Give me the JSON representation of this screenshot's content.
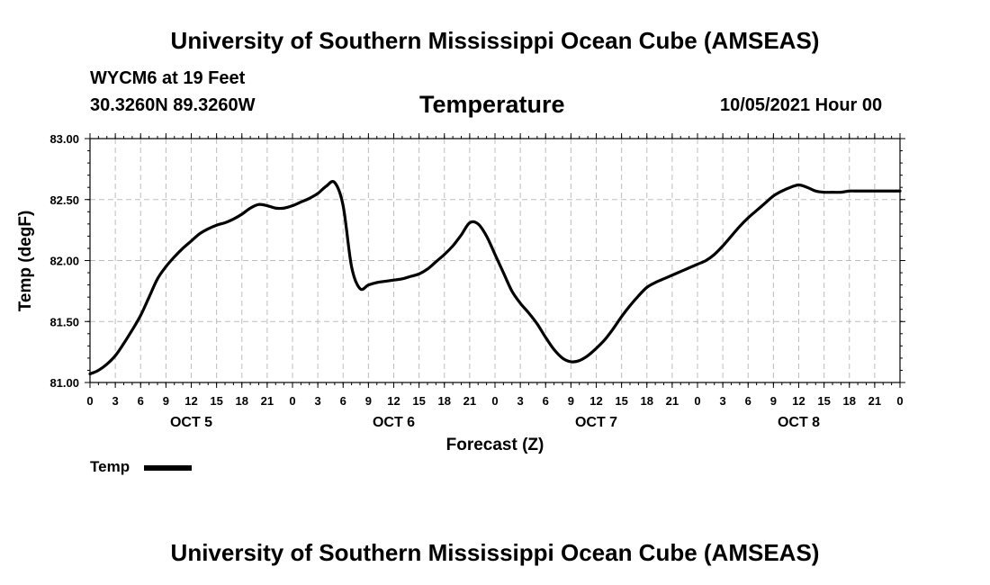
{
  "header": {
    "title": "University of Southern Mississippi Ocean Cube (AMSEAS)",
    "station": "WYCM6 at 19 Feet",
    "coordinates": "30.3260N  89.3260W",
    "variable": "Temperature",
    "run_time": "10/05/2021 Hour 00"
  },
  "footer": {
    "title": "University of Southern Mississippi Ocean Cube (AMSEAS)"
  },
  "legend": {
    "label": "Temp",
    "color": "#000000"
  },
  "chart_data": {
    "type": "line",
    "title": "Temperature",
    "xlabel": "Forecast (Z)",
    "ylabel": "Temp (degF)",
    "ylim": [
      81.0,
      83.0
    ],
    "xlim": [
      0,
      96
    ],
    "grid": true,
    "y_ticks": [
      "81.00",
      "81.50",
      "82.00",
      "82.50",
      "83.00"
    ],
    "x_tick_labels": [
      "0",
      "3",
      "6",
      "9",
      "12",
      "15",
      "18",
      "21",
      "0",
      "3",
      "6",
      "9",
      "12",
      "15",
      "18",
      "21",
      "0",
      "3",
      "6",
      "9",
      "12",
      "15",
      "18",
      "21",
      "0",
      "3",
      "6",
      "9",
      "12",
      "15",
      "18",
      "21",
      "0"
    ],
    "day_labels": [
      {
        "label": "OCT 5",
        "hour": 12
      },
      {
        "label": "OCT 6",
        "hour": 36
      },
      {
        "label": "OCT 7",
        "hour": 60
      },
      {
        "label": "OCT 8",
        "hour": 84
      }
    ],
    "series": [
      {
        "name": "Temp",
        "color": "#000000",
        "x": [
          0,
          1,
          2,
          3,
          4,
          5,
          6,
          7,
          8,
          9,
          10,
          11,
          12,
          13,
          14,
          15,
          16,
          17,
          18,
          19,
          20,
          21,
          22,
          23,
          24,
          25,
          26,
          27,
          28,
          29,
          30,
          31,
          32,
          33,
          34,
          35,
          36,
          37,
          38,
          39,
          40,
          41,
          42,
          43,
          44,
          45,
          46,
          47,
          48,
          49,
          50,
          51,
          52,
          53,
          54,
          55,
          56,
          57,
          58,
          59,
          60,
          61,
          62,
          63,
          64,
          65,
          66,
          67,
          68,
          69,
          70,
          71,
          72,
          73,
          74,
          75,
          76,
          77,
          78,
          79,
          80,
          81,
          82,
          83,
          84,
          85,
          86,
          87,
          88,
          89,
          90,
          91,
          92,
          93,
          94,
          95,
          96
        ],
        "values": [
          81.07,
          81.1,
          81.15,
          81.22,
          81.32,
          81.43,
          81.55,
          81.7,
          81.85,
          81.95,
          82.03,
          82.1,
          82.16,
          82.22,
          82.26,
          82.29,
          82.31,
          82.34,
          82.38,
          82.43,
          82.46,
          82.45,
          82.43,
          82.43,
          82.45,
          82.48,
          82.51,
          82.55,
          82.61,
          82.64,
          82.45,
          81.95,
          81.77,
          81.8,
          81.82,
          81.83,
          81.84,
          81.85,
          81.87,
          81.89,
          81.93,
          81.99,
          82.05,
          82.12,
          82.21,
          82.31,
          82.3,
          82.2,
          82.05,
          81.9,
          81.75,
          81.65,
          81.57,
          81.48,
          81.37,
          81.27,
          81.2,
          81.17,
          81.18,
          81.22,
          81.28,
          81.35,
          81.44,
          81.54,
          81.63,
          81.71,
          81.78,
          81.82,
          81.85,
          81.88,
          81.91,
          81.94,
          81.97,
          82.0,
          82.05,
          82.12,
          82.2,
          82.28,
          82.35,
          82.41,
          82.47,
          82.53,
          82.57,
          82.6,
          82.62,
          82.6,
          82.57,
          82.56,
          82.56,
          82.56,
          82.57,
          82.57,
          82.57,
          82.57,
          82.57,
          82.57,
          82.57
        ]
      }
    ]
  }
}
